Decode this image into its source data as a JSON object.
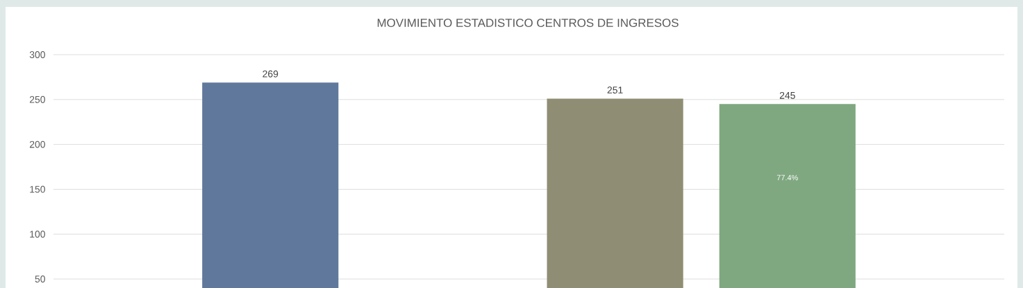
{
  "chart_data": {
    "type": "bar",
    "title": "MOVIMIENTO ESTADISTICO CENTROS DE INGRESOS",
    "categories": [
      null,
      null,
      null,
      null
    ],
    "values": [
      269,
      null,
      251,
      245
    ],
    "colors": [
      "#60789c",
      null,
      "#8f8d73",
      "#7fa880"
    ],
    "value_labels": [
      "269",
      null,
      "251",
      "245"
    ],
    "annotations": [
      "77.4%"
    ],
    "ylim": [
      40,
      300
    ],
    "yticks": [
      50,
      100,
      150,
      200,
      250,
      300
    ],
    "grid": "y",
    "tick_labels": "y"
  }
}
